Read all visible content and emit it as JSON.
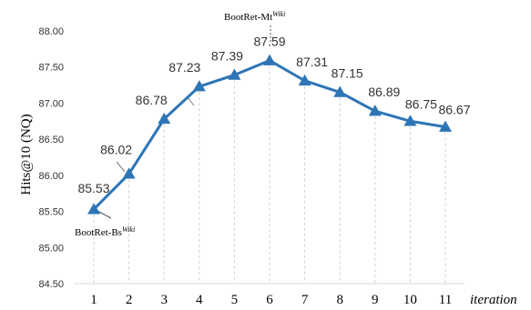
{
  "chart_data": {
    "type": "line",
    "x": [
      1,
      2,
      3,
      4,
      5,
      6,
      7,
      8,
      9,
      10,
      11
    ],
    "x_tick_labels": [
      "1",
      "2",
      "3",
      "4",
      "5",
      "6",
      "7",
      "8",
      "9",
      "10",
      "11"
    ],
    "series": [
      {
        "values": [
          85.53,
          86.02,
          86.78,
          87.23,
          87.39,
          87.59,
          87.31,
          87.15,
          86.89,
          86.75,
          86.67
        ],
        "data_labels": [
          "85.53",
          "86.02",
          "86.78",
          "87.23",
          "87.39",
          "87.59",
          "87.31",
          "87.15",
          "86.89",
          "86.75",
          "86.67"
        ],
        "color": "#2e75b6",
        "marker": "triangle"
      }
    ],
    "ylabel": "Hits@10 (NQ)",
    "xlabel": "iteration",
    "ylim": [
      84.5,
      88.0
    ],
    "y_ticks": [
      "84.50",
      "85.00",
      "85.50",
      "86.00",
      "86.50",
      "87.00",
      "87.50",
      "88.00"
    ],
    "grid": "vertical dashed",
    "annotations": [
      {
        "text": "BootRet-Bs",
        "superscript": "Wiki",
        "point_index": 0
      },
      {
        "text": "BootRet-Mt",
        "superscript": "Wiki",
        "point_index": 5
      }
    ]
  }
}
